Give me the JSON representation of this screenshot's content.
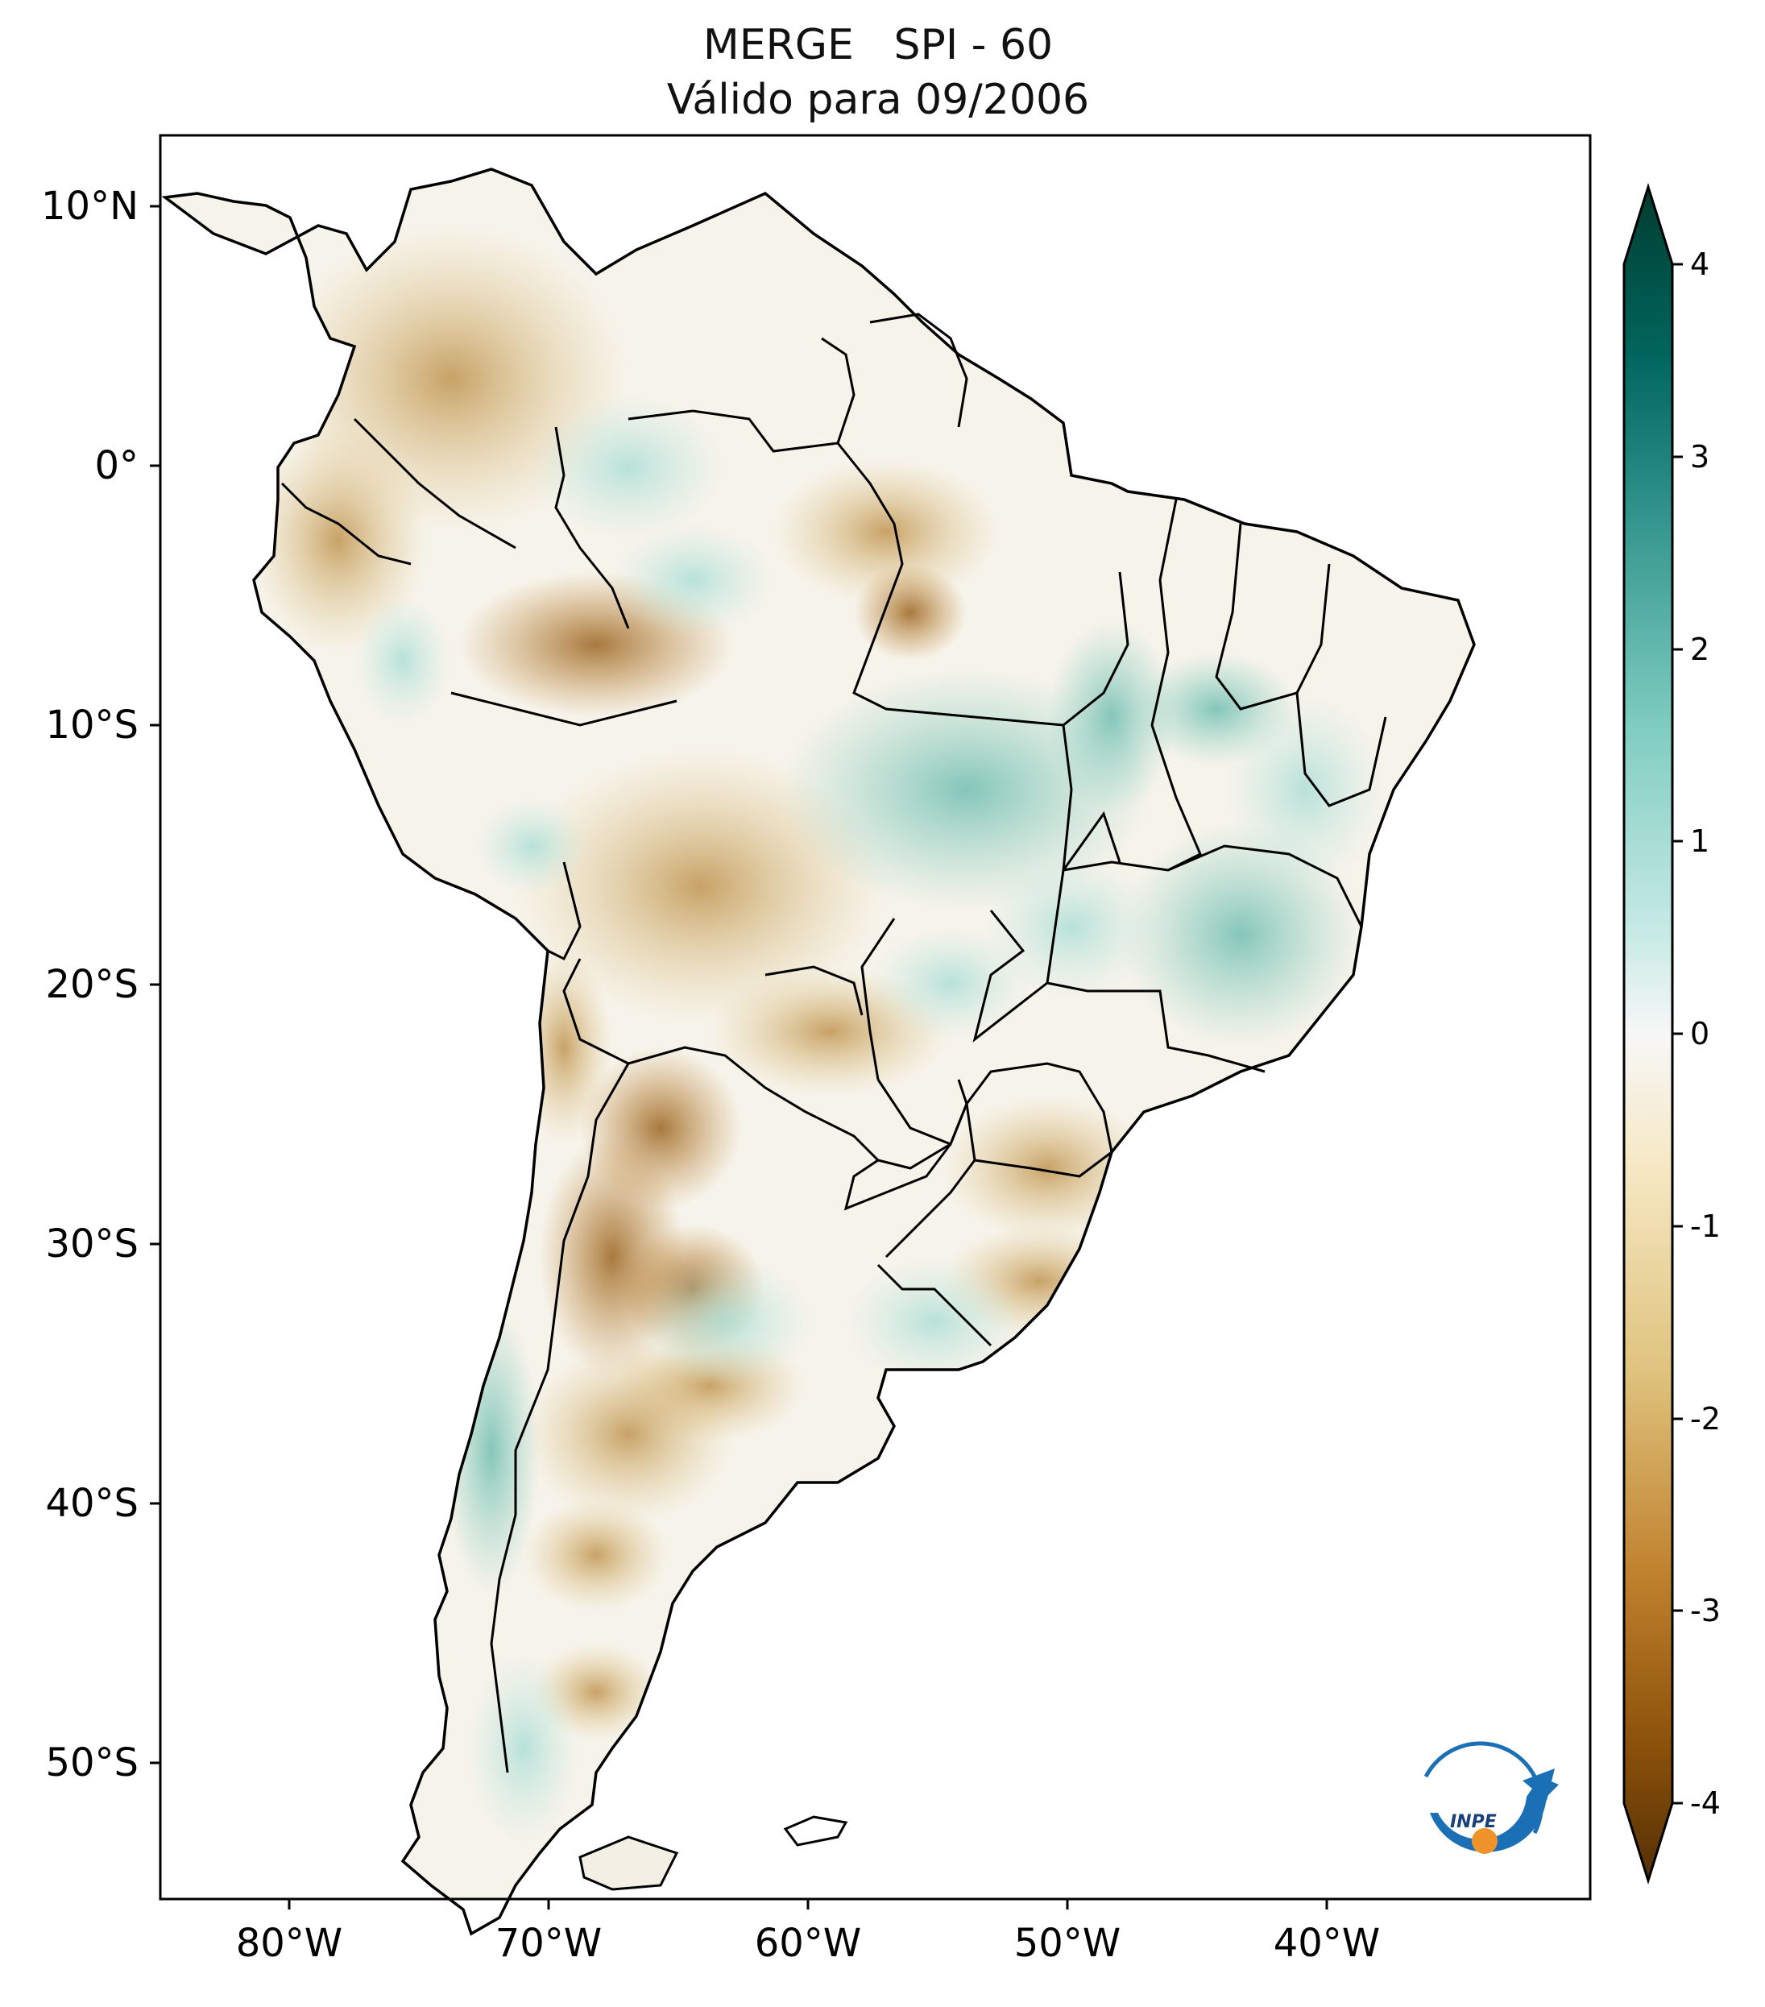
{
  "title": {
    "line1": "MERGE   SPI - 60",
    "line2": "Válido para 09/2006"
  },
  "map": {
    "region": "South America",
    "lon_range": [
      -85,
      -30
    ],
    "lat_range": [
      -56,
      13
    ],
    "lat_ticks": [
      "10°N",
      "0°",
      "10°S",
      "20°S",
      "30°S",
      "40°S",
      "50°S"
    ],
    "lon_ticks": [
      "80°W",
      "70°W",
      "60°W",
      "50°W",
      "40°W"
    ]
  },
  "colorbar": {
    "ticks": [
      "4",
      "3",
      "2",
      "1",
      "0",
      "-1",
      "-2",
      "-3",
      "-4"
    ],
    "colors": [
      "#003c30",
      "#01665e",
      "#35978f",
      "#80cdc1",
      "#c7eae5",
      "#f5f5f5",
      "#f6e8c3",
      "#dfc27d",
      "#bf812d",
      "#8c510a",
      "#543005"
    ],
    "extend": "both"
  },
  "logo": {
    "text": "INPE",
    "colors": [
      "#1a6fb5",
      "#f0932b"
    ]
  }
}
